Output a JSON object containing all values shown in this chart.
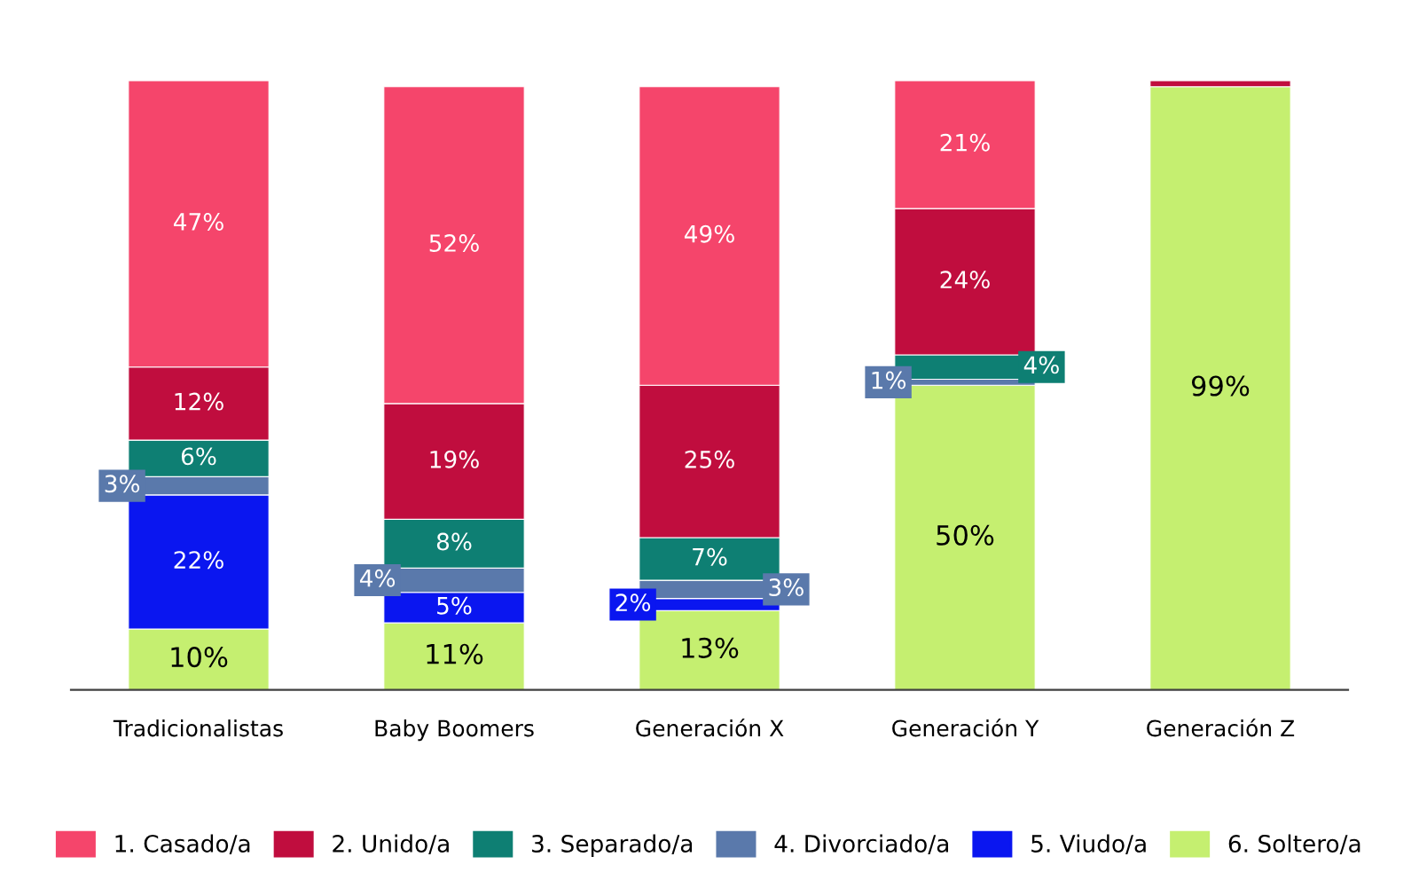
{
  "chart_data": {
    "type": "bar",
    "stacked": true,
    "categories": [
      "Tradicionalistas",
      "Baby Boomers",
      "Generación X",
      "Generación Y",
      "Generación Z"
    ],
    "ylim": [
      0,
      100
    ],
    "tick_labels": "x",
    "grid": false,
    "legend": "bottom",
    "series": [
      {
        "name": "6. Soltero/a",
        "color": "#c5ef70",
        "values": [
          10,
          11,
          13,
          50,
          99
        ],
        "value_labels": [
          "10%",
          "11%",
          "13%",
          "50%",
          "99%"
        ]
      },
      {
        "name": "5. Viudo/a",
        "color": "#0a16f0",
        "values": [
          22,
          5,
          2,
          null,
          null
        ],
        "value_labels": [
          "22%",
          "5%",
          "2%",
          null,
          null
        ]
      },
      {
        "name": "4. Divorciado/a",
        "color": "#5a79ab",
        "values": [
          3,
          4,
          3,
          1,
          null
        ],
        "value_labels": [
          "3%",
          "4%",
          "3%",
          "1%",
          null
        ]
      },
      {
        "name": "3. Separado/a",
        "color": "#0e7f73",
        "values": [
          6,
          8,
          7,
          4,
          null
        ],
        "value_labels": [
          "6%",
          "8%",
          "7%",
          "4%",
          null
        ]
      },
      {
        "name": "2. Unido/a",
        "color": "#c00d3e",
        "values": [
          12,
          19,
          25,
          24,
          1
        ],
        "value_labels": [
          "12%",
          "19%",
          "25%",
          "24%",
          null
        ]
      },
      {
        "name": "1. Casado/a",
        "color": "#f5456b",
        "values": [
          47,
          52,
          49,
          21,
          null
        ],
        "value_labels": [
          "47%",
          "52%",
          "49%",
          "21%",
          null
        ]
      }
    ]
  }
}
